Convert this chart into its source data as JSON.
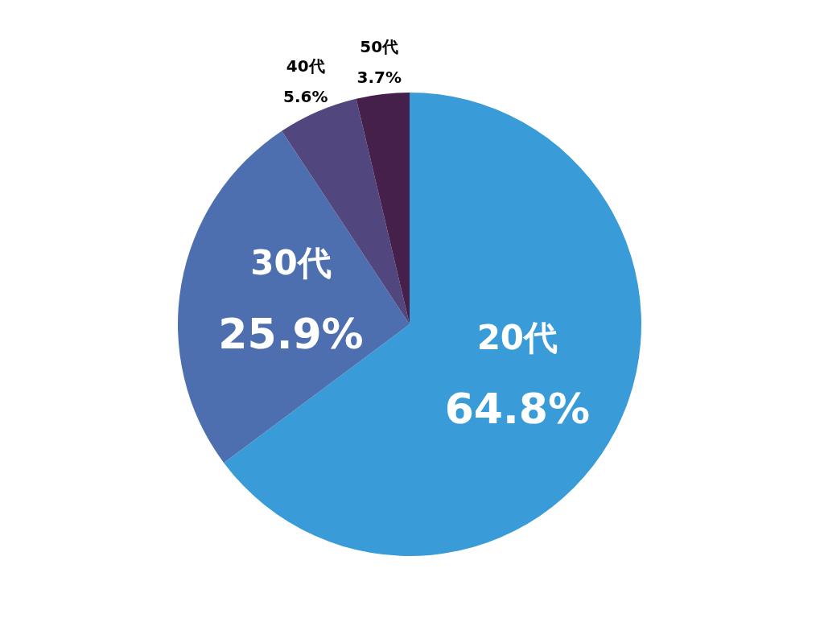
{
  "chart_data": {
    "type": "pie",
    "categories": [
      "20代",
      "30代",
      "40代",
      "50代"
    ],
    "values": [
      64.8,
      25.9,
      5.6,
      3.7
    ],
    "colors": [
      "#399cd8",
      "#4e6faf",
      "#52467e",
      "#45204a"
    ],
    "value_labels": [
      "64.8%",
      "25.9%",
      "5.6%",
      "3.7%"
    ]
  }
}
